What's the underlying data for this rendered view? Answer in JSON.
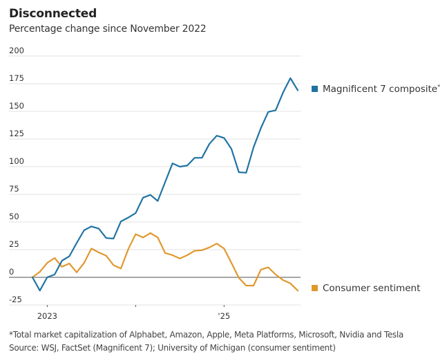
{
  "header": {
    "title": "Disconnected",
    "subtitle": "Percentage change since November 2022"
  },
  "footnotes": {
    "note": "*Total market capitalization of Alphabet, Amazon, Apple, Meta Platforms, Microsoft, Nvidia and Tesla",
    "source": "Source: WSJ, FactSet (Magnificent 7); University of Michigan (consumer sentiment)"
  },
  "chart_data": {
    "type": "line",
    "title": "Disconnected",
    "subtitle": "Percentage change since November 2022",
    "xlabel": "",
    "ylabel": "",
    "ylim": [
      -25,
      200
    ],
    "yticks": [
      200,
      175,
      150,
      125,
      100,
      75,
      50,
      25,
      0,
      -25
    ],
    "ytick_labels": [
      "200",
      "175",
      "150",
      "125",
      "100",
      "75",
      "50",
      "25",
      "0",
      "-25"
    ],
    "x_start": "Nov 2022",
    "x_unit": "month",
    "x": [
      0,
      1,
      2,
      3,
      4,
      5,
      6,
      7,
      8,
      9,
      10,
      11,
      12,
      13,
      14,
      15,
      16,
      17,
      18,
      19,
      20,
      21,
      22,
      23,
      24,
      25,
      26,
      27,
      28,
      29,
      30,
      31,
      32,
      33,
      34,
      35,
      36
    ],
    "xlim": [
      0,
      36
    ],
    "xticks": [
      {
        "month_index": 2,
        "label": "2023"
      },
      {
        "month_index": 14,
        "label": ""
      },
      {
        "month_index": 26,
        "label": "'25"
      }
    ],
    "grid": true,
    "legend_placement": "right, beside line ends",
    "series": [
      {
        "name": "Magnificent 7 composite",
        "footnote_marker": "*",
        "color": "#1F73A3",
        "values": [
          0,
          -12,
          0,
          2.5,
          15,
          19,
          31,
          42.5,
          46,
          44,
          35.5,
          35,
          50.5,
          54,
          58,
          72,
          74.5,
          69,
          86,
          103,
          100,
          101,
          108,
          108,
          120.5,
          128,
          126,
          116,
          95,
          94.5,
          117.5,
          135,
          149.5,
          151,
          167,
          180,
          169
        ]
      },
      {
        "name": "Consumer sentiment",
        "footnote_marker": "",
        "color": "#E0982E",
        "values": [
          0,
          5,
          13,
          17.5,
          9.5,
          12.5,
          4.5,
          13,
          26,
          22.5,
          19.5,
          11,
          8,
          25.5,
          39,
          36,
          40,
          36,
          22,
          20,
          17,
          20,
          24,
          24.5,
          27,
          30.5,
          26,
          13,
          -0.5,
          -7.5,
          -7.5,
          7,
          9,
          2.5,
          -2.5,
          -5.5,
          -12
        ]
      }
    ]
  }
}
